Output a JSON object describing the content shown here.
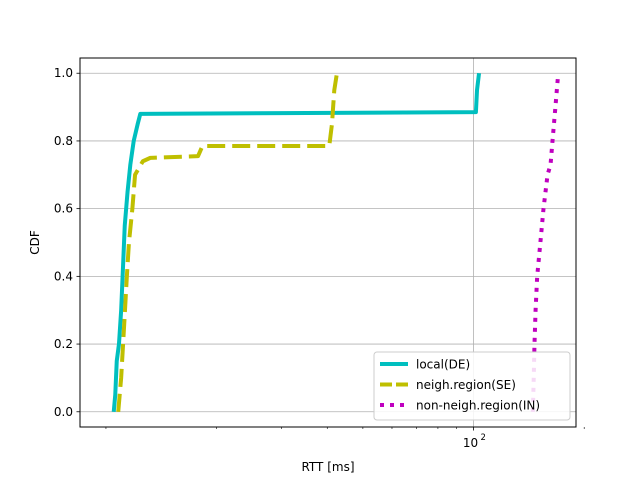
{
  "chart_data": {
    "type": "line",
    "title": "",
    "xlabel": "RTT [ms]",
    "ylabel": "CDF",
    "x_scale": "log",
    "xlim": [
      8.5,
      190
    ],
    "ylim": [
      -0.045,
      1.045
    ],
    "x_major_ticks": [
      {
        "value": 100,
        "label": "10",
        "exponent": "2"
      }
    ],
    "x_minor_ticks": [
      10,
      20,
      30,
      40,
      50,
      60,
      70,
      80,
      90,
      200
    ],
    "y_ticks": [
      {
        "value": 0.0,
        "label": "0.0"
      },
      {
        "value": 0.2,
        "label": "0.2"
      },
      {
        "value": 0.4,
        "label": "0.4"
      },
      {
        "value": 0.6,
        "label": "0.6"
      },
      {
        "value": 0.8,
        "label": "0.8"
      },
      {
        "value": 1.0,
        "label": "1.0"
      }
    ],
    "grid": true,
    "legend_position": "lower right",
    "series": [
      {
        "name": "local(DE)",
        "color": "#00bfbf",
        "style": "solid",
        "points": [
          [
            10.5,
            0.0
          ],
          [
            10.6,
            0.05
          ],
          [
            10.7,
            0.15
          ],
          [
            10.85,
            0.2
          ],
          [
            11.0,
            0.3
          ],
          [
            11.15,
            0.45
          ],
          [
            11.25,
            0.55
          ],
          [
            11.45,
            0.65
          ],
          [
            11.65,
            0.73
          ],
          [
            11.9,
            0.8
          ],
          [
            12.2,
            0.85
          ],
          [
            12.4,
            0.88
          ],
          [
            30.0,
            0.882
          ],
          [
            101.5,
            0.885
          ],
          [
            102.2,
            0.95
          ],
          [
            103.5,
            1.0
          ]
        ]
      },
      {
        "name": "neigh.region(SE)",
        "color": "#bfbf00",
        "style": "dashed",
        "points": [
          [
            10.8,
            0.0
          ],
          [
            11.0,
            0.1
          ],
          [
            11.2,
            0.25
          ],
          [
            11.4,
            0.4
          ],
          [
            11.55,
            0.5
          ],
          [
            11.8,
            0.6
          ],
          [
            12.0,
            0.7
          ],
          [
            12.6,
            0.74
          ],
          [
            13.2,
            0.75
          ],
          [
            17.8,
            0.755
          ],
          [
            18.3,
            0.785
          ],
          [
            40.5,
            0.785
          ],
          [
            41.2,
            0.85
          ],
          [
            41.8,
            0.95
          ],
          [
            42.5,
            1.0
          ]
        ]
      },
      {
        "name": "non-neigh.region(IN)",
        "color": "#bf00bf",
        "style": "dotted",
        "points": [
          [
            145.0,
            0.0
          ],
          [
            145.8,
            0.1
          ],
          [
            146.5,
            0.2
          ],
          [
            147.5,
            0.3
          ],
          [
            149.0,
            0.4
          ],
          [
            152.0,
            0.5
          ],
          [
            155.0,
            0.6
          ],
          [
            159.0,
            0.7
          ],
          [
            162.0,
            0.73
          ],
          [
            164.0,
            0.8
          ],
          [
            167.0,
            0.9
          ],
          [
            170.0,
            1.0
          ]
        ]
      }
    ]
  }
}
